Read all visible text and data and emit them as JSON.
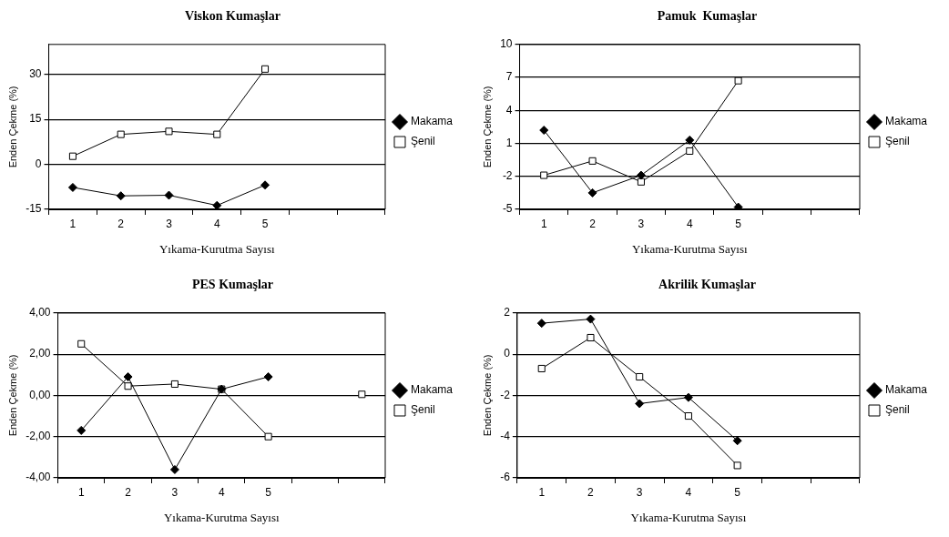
{
  "chart_data": [
    {
      "type": "line",
      "title": "Viskon Kumaşlar",
      "xlabel": "Yıkama-Kurutma Sayısı",
      "ylabel": "Enden Çekme (%)",
      "categories": [
        "1",
        "2",
        "3",
        "4",
        "5",
        null,
        null
      ],
      "ylim": [
        -15,
        40
      ],
      "yticks": [
        -15,
        0,
        15,
        30
      ],
      "grid": "y",
      "legend": "right",
      "line_style": "solid",
      "series": [
        {
          "name": "Makama",
          "color": "#000000",
          "marker": "diamond",
          "values": [
            -7.7,
            -10.5,
            -10.3,
            -13.7,
            -6.9,
            null,
            null
          ]
        },
        {
          "name": "Şenil",
          "color": "#000000",
          "marker": "square",
          "values": [
            2.7,
            10,
            11,
            10,
            31.8,
            null,
            null
          ]
        }
      ]
    },
    {
      "type": "line",
      "title": "Pamuk  Kumaşlar",
      "xlabel": "Yıkama-Kurutma Sayısı",
      "ylabel": "Enden Çekme (%)",
      "categories": [
        "1",
        "2",
        "3",
        "4",
        "5",
        null,
        null
      ],
      "ylim": [
        -5,
        10
      ],
      "yticks": [
        -5,
        -2,
        1,
        4,
        7,
        10
      ],
      "grid": "y",
      "legend": "right",
      "line_style": "solid",
      "series": [
        {
          "name": "Makama",
          "color": "#000000",
          "marker": "diamond",
          "values": [
            2.2,
            -3.5,
            -1.9,
            1.3,
            -4.8,
            null,
            null
          ]
        },
        {
          "name": "Şenil",
          "color": "#000000",
          "marker": "square",
          "values": [
            -1.9,
            -0.6,
            -2.5,
            0.3,
            6.7,
            null,
            null
          ]
        }
      ]
    },
    {
      "type": "line",
      "title": "PES Kumaşlar",
      "xlabel": "Yıkama-Kurutma Sayısı",
      "ylabel": "Enden Çekme (%)",
      "categories": [
        "1",
        "2",
        "3",
        "4",
        "5",
        null,
        null
      ],
      "ylim": [
        -4,
        4
      ],
      "yticks": [
        {
          "value": -4,
          "label": "-4,00"
        },
        {
          "value": -2,
          "label": "-2,00"
        },
        {
          "value": 0,
          "label": "0,00"
        },
        {
          "value": 2,
          "label": "2,00"
        },
        {
          "value": 4,
          "label": "4,00"
        }
      ],
      "grid": "y",
      "legend": "right",
      "line_style": "solid",
      "series": [
        {
          "name": "Makama",
          "color": "#000000",
          "marker": "diamond",
          "values": [
            -1.7,
            0.9,
            -3.6,
            0.3,
            0.9,
            null,
            null
          ]
        },
        {
          "name": "Şenil",
          "color": "#000000",
          "marker": "square",
          "values": [
            2.5,
            0.45,
            0.55,
            0.3,
            -2.0,
            null,
            0.05
          ]
        }
      ]
    },
    {
      "type": "line",
      "title": "Akrilik Kumaşlar",
      "xlabel": "Yıkama-Kurutma Sayısı",
      "ylabel": "Enden Çekme (%)",
      "categories": [
        "1",
        "2",
        "3",
        "4",
        "5",
        null,
        null
      ],
      "ylim": [
        -6,
        2
      ],
      "yticks": [
        -6,
        -4,
        -2,
        0,
        2
      ],
      "grid": "y",
      "legend": "right",
      "line_style": "solid",
      "series": [
        {
          "name": "Makama",
          "color": "#000000",
          "marker": "diamond",
          "values": [
            1.5,
            1.7,
            -2.4,
            -2.1,
            -4.2,
            null,
            null
          ]
        },
        {
          "name": "Şenil",
          "color": "#000000",
          "marker": "square",
          "values": [
            -0.7,
            0.8,
            -1.1,
            -3.0,
            -5.4,
            null,
            null
          ]
        }
      ]
    }
  ]
}
